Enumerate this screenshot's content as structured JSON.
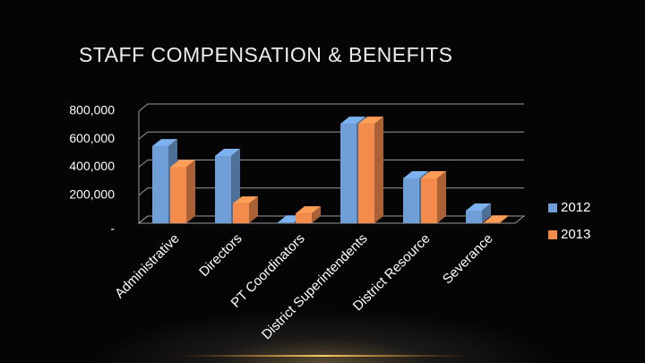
{
  "chart_data": {
    "type": "bar",
    "title": "STAFF COMPENSATION & BENEFITS",
    "categories": [
      "Administrative",
      "Directors",
      "PT Coordinators",
      "District Superintendents",
      "District Resource",
      "Severance"
    ],
    "series": [
      {
        "name": "2012",
        "color": "#6f9fd6",
        "values": [
          550000,
          480000,
          5000,
          710000,
          320000,
          90000
        ]
      },
      {
        "name": "2013",
        "color": "#f38b4c",
        "values": [
          400000,
          140000,
          70000,
          710000,
          320000,
          5000
        ]
      }
    ],
    "ylim": [
      0,
      800000
    ],
    "yticks": [
      {
        "value": 0,
        "label": "-"
      },
      {
        "value": 200000,
        "label": "200,000"
      },
      {
        "value": 400000,
        "label": "400,000"
      },
      {
        "value": 600000,
        "label": "600,000"
      },
      {
        "value": 800000,
        "label": "800,000"
      }
    ],
    "grid": true,
    "legend": "right"
  }
}
